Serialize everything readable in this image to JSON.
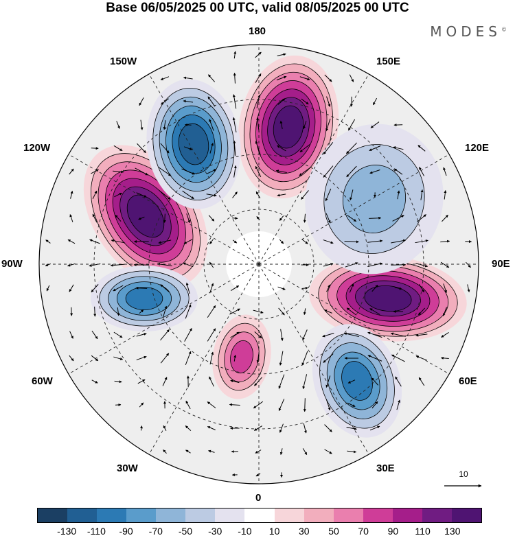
{
  "header": {
    "title": "Base 06/05/2025 00 UTC, valid 08/05/2025 00 UTC",
    "brand": "MODES",
    "brand_mark": "©"
  },
  "map": {
    "longitude_labels": {
      "top": "180",
      "bottom": "0",
      "left": "90W",
      "right": "90E",
      "upper_left_1": "150W",
      "upper_left_2": "120W",
      "upper_right_1": "150E",
      "upper_right_2": "120E",
      "lower_left_1": "60W",
      "lower_left_2": "30W",
      "lower_right_1": "60E",
      "lower_right_2": "30E"
    },
    "reference_vector": {
      "value": "10"
    }
  },
  "colorbar": {
    "ticks": [
      "-130",
      "-110",
      "-90",
      "-70",
      "-50",
      "-30",
      "-10",
      "10",
      "30",
      "50",
      "70",
      "90",
      "110",
      "130"
    ],
    "colors": [
      "#1b3f63",
      "#215f93",
      "#2c7ab4",
      "#5a9ccb",
      "#8fb5d8",
      "#bccbe3",
      "#e4e2ef",
      "#ffffff",
      "#f7d6da",
      "#f2aebd",
      "#ea7fae",
      "#cf3d98",
      "#a51e8a",
      "#701c82",
      "#4f1472"
    ]
  },
  "anomaly_centers": [
    {
      "sign": "positive",
      "value": 130
    },
    {
      "sign": "positive",
      "value": 130
    },
    {
      "sign": "positive",
      "value": 130
    },
    {
      "sign": "positive",
      "value": 70
    },
    {
      "sign": "negative",
      "value": -110
    },
    {
      "sign": "negative",
      "value": -90
    },
    {
      "sign": "negative",
      "value": -90
    },
    {
      "sign": "negative",
      "value": -50
    }
  ]
}
